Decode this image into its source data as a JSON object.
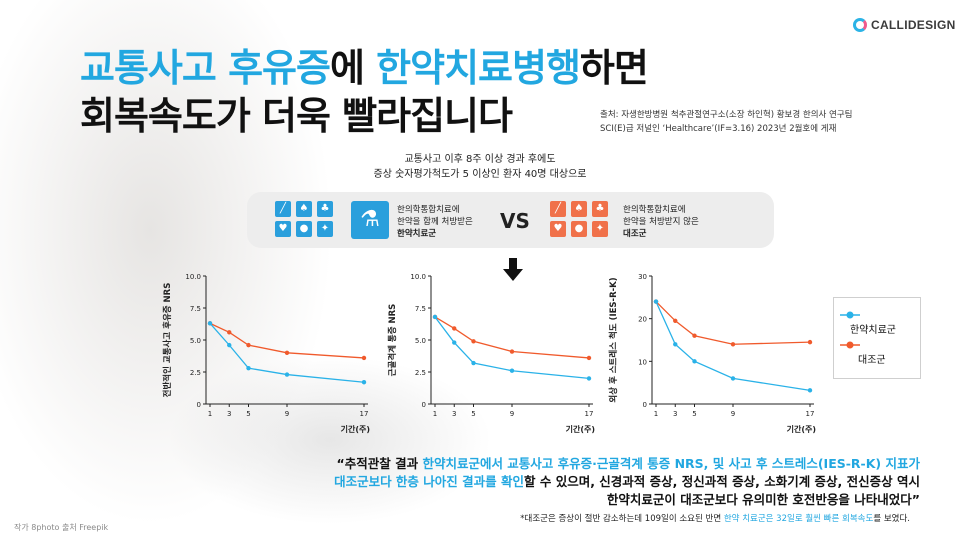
{
  "brand": {
    "name": "CALLIDESIGN"
  },
  "title": {
    "line1_hl1": "교통사고 후유증",
    "line1_mid": "에 ",
    "line1_hl2": "한약치료병행",
    "line1_end": "하면",
    "line2": "회복속도가 더욱 빨라집니다"
  },
  "source": {
    "line1": "출처:  자생한방병원 척추관절연구소(소장 하인혁) 황보경 한의사 연구팀",
    "line2": "SCI(E)급 저널인 ‘Healthcare’(IF=3.16) 2023년 2월호에 게재"
  },
  "intro": {
    "line1": "교통사고 이후 8주 이상 경과 후에도",
    "line2": "증상 숫자평가척도가 5 이상인 환자 40명 대상으로"
  },
  "comparison": {
    "treat_line1": "한의학통합치료에",
    "treat_line2": "한약을 함께 처방받은",
    "treat_name": "한약치료군",
    "vs": "VS",
    "ctrl_line1": "한의학통합치료에",
    "ctrl_line2": "한약을 처방받지 않은",
    "ctrl_name": "대조군"
  },
  "colors": {
    "accent": "#22a7e0",
    "treatment": "#2ab2e8",
    "control": "#f05a2c"
  },
  "chart_data": [
    {
      "type": "line",
      "ylabel": "전반적인 교통사고 후유증 NRS",
      "xlabel": "",
      "x": [
        1,
        3,
        5,
        9,
        17
      ],
      "ylim": [
        0,
        10
      ],
      "yticks": [
        "0",
        "2.5",
        "5.0",
        "7.5",
        "10.0"
      ],
      "series": [
        {
          "name": "한약치료군",
          "values": [
            6.3,
            4.6,
            2.8,
            2.3,
            1.7
          ]
        },
        {
          "name": "대조군",
          "values": [
            6.3,
            5.6,
            4.6,
            4.0,
            3.6
          ]
        }
      ]
    },
    {
      "type": "line",
      "ylabel": "근골격계 통증 NRS",
      "xlabel": "",
      "x": [
        1,
        3,
        5,
        9,
        17
      ],
      "ylim": [
        0,
        10
      ],
      "yticks": [
        "0",
        "2.5",
        "5.0",
        "7.5",
        "10.0"
      ],
      "series": [
        {
          "name": "한약치료군",
          "values": [
            6.8,
            4.8,
            3.2,
            2.6,
            2.0
          ]
        },
        {
          "name": "대조군",
          "values": [
            6.8,
            5.9,
            4.9,
            4.1,
            3.6
          ]
        }
      ]
    },
    {
      "type": "line",
      "ylabel": "외상 후 스트레스 척도 (IES-R-K)",
      "xlabel": "기간(주)",
      "x": [
        1,
        3,
        5,
        9,
        17
      ],
      "ylim": [
        0,
        30
      ],
      "yticks": [
        "0",
        "10",
        "20",
        "30"
      ],
      "series": [
        {
          "name": "한약치료군",
          "values": [
            24,
            14,
            10,
            6,
            3.2
          ]
        },
        {
          "name": "대조군",
          "values": [
            24,
            19.5,
            16,
            14,
            14.5
          ]
        }
      ]
    }
  ],
  "chart_xlabels": [
    "기간(주)",
    "기간(주)",
    "기간(주)"
  ],
  "legend": {
    "treatment": "한약치료군",
    "control": "대조군"
  },
  "quote": {
    "p1": "“추적관찰 결과 ",
    "h1": "한약치료군에서 교통사고 후유증·근골격계 통증 NRS, 및 사고 후 스트레스(IES-R-K) 지표가",
    "h2": "대조군보다 한층 나아진 결과를 확인",
    "p2": "할 수 있으며, 신경과적 증상, 정신과적 증상, 소화기계 증상, 전신증상 역시",
    "p3": "한약치료군이 대조군보다 유의미한 호전반응을 나타내었다”"
  },
  "footnote": {
    "pre": "*대조군은 증상이 절반 감소하는데 109일이 소요된 반면 ",
    "hl": "한약 치료군은 32일로 훨씬 빠른 회복속도",
    "post": "를 보였다."
  },
  "credit": "작가 8photo 출처 Freepik"
}
